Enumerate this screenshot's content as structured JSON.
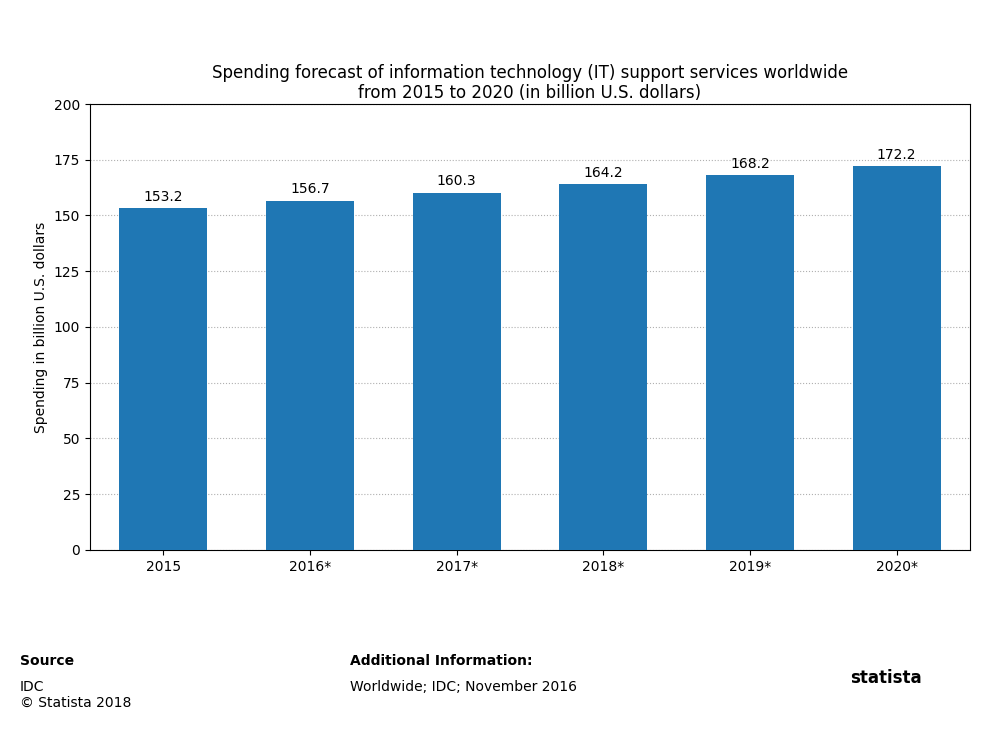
{
  "chart_data": {
    "type": "bar",
    "title": "Spending forecast of information technology (IT) support services worldwide\nfrom 2015 to 2020 (in billion U.S. dollars)",
    "categories": [
      "2015",
      "2016*",
      "2017*",
      "2018*",
      "2019*",
      "2020*"
    ],
    "values": [
      153.2,
      156.7,
      160.3,
      164.2,
      168.2,
      172.2
    ],
    "ylabel": "Spending in billion U.S. dollars",
    "ylim": [
      0,
      200
    ],
    "yticks": [
      0,
      25,
      50,
      75,
      100,
      125,
      150,
      175,
      200
    ],
    "grid": true,
    "data_labels": true,
    "annotations": [
      "Source",
      "IDC\n© Statista 2018",
      "Additional Information:",
      "Worldwide; IDC; November 2016",
      "statista"
    ]
  }
}
